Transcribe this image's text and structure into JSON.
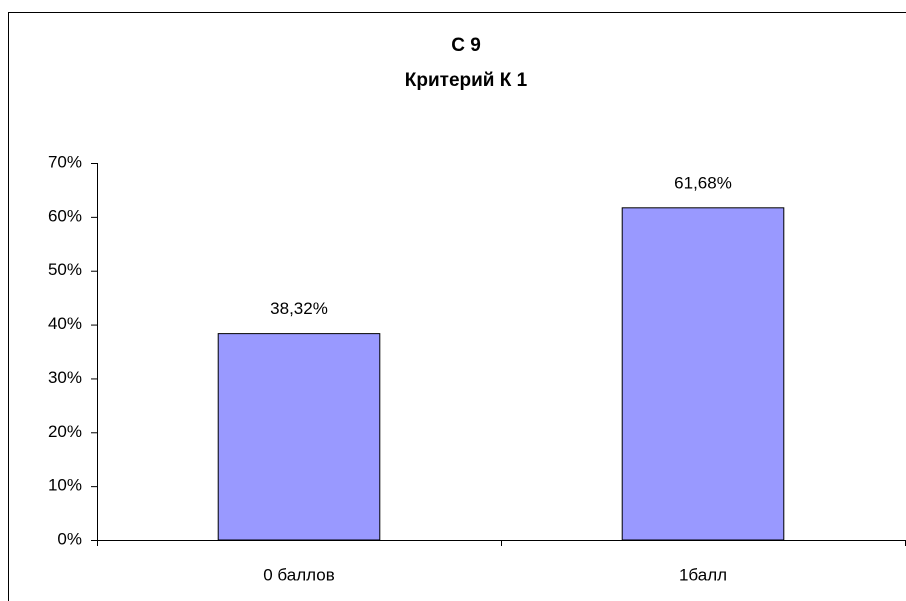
{
  "chart_data": {
    "type": "bar",
    "title": "С 9",
    "subtitle": "Критерий К 1",
    "categories": [
      "0 баллов",
      "1балл"
    ],
    "values": [
      38.32,
      61.68
    ],
    "value_labels": [
      "38,32%",
      "61,68%"
    ],
    "color": "#9999ff",
    "ylim": [
      0,
      70
    ],
    "yticks": [
      {
        "value": 0,
        "label": "0%"
      },
      {
        "value": 10,
        "label": "10%"
      },
      {
        "value": 20,
        "label": "20%"
      },
      {
        "value": 30,
        "label": "30%"
      },
      {
        "value": 40,
        "label": "40%"
      },
      {
        "value": 50,
        "label": "50%"
      },
      {
        "value": 60,
        "label": "60%"
      },
      {
        "value": 70,
        "label": "70%"
      }
    ],
    "grid": false
  }
}
